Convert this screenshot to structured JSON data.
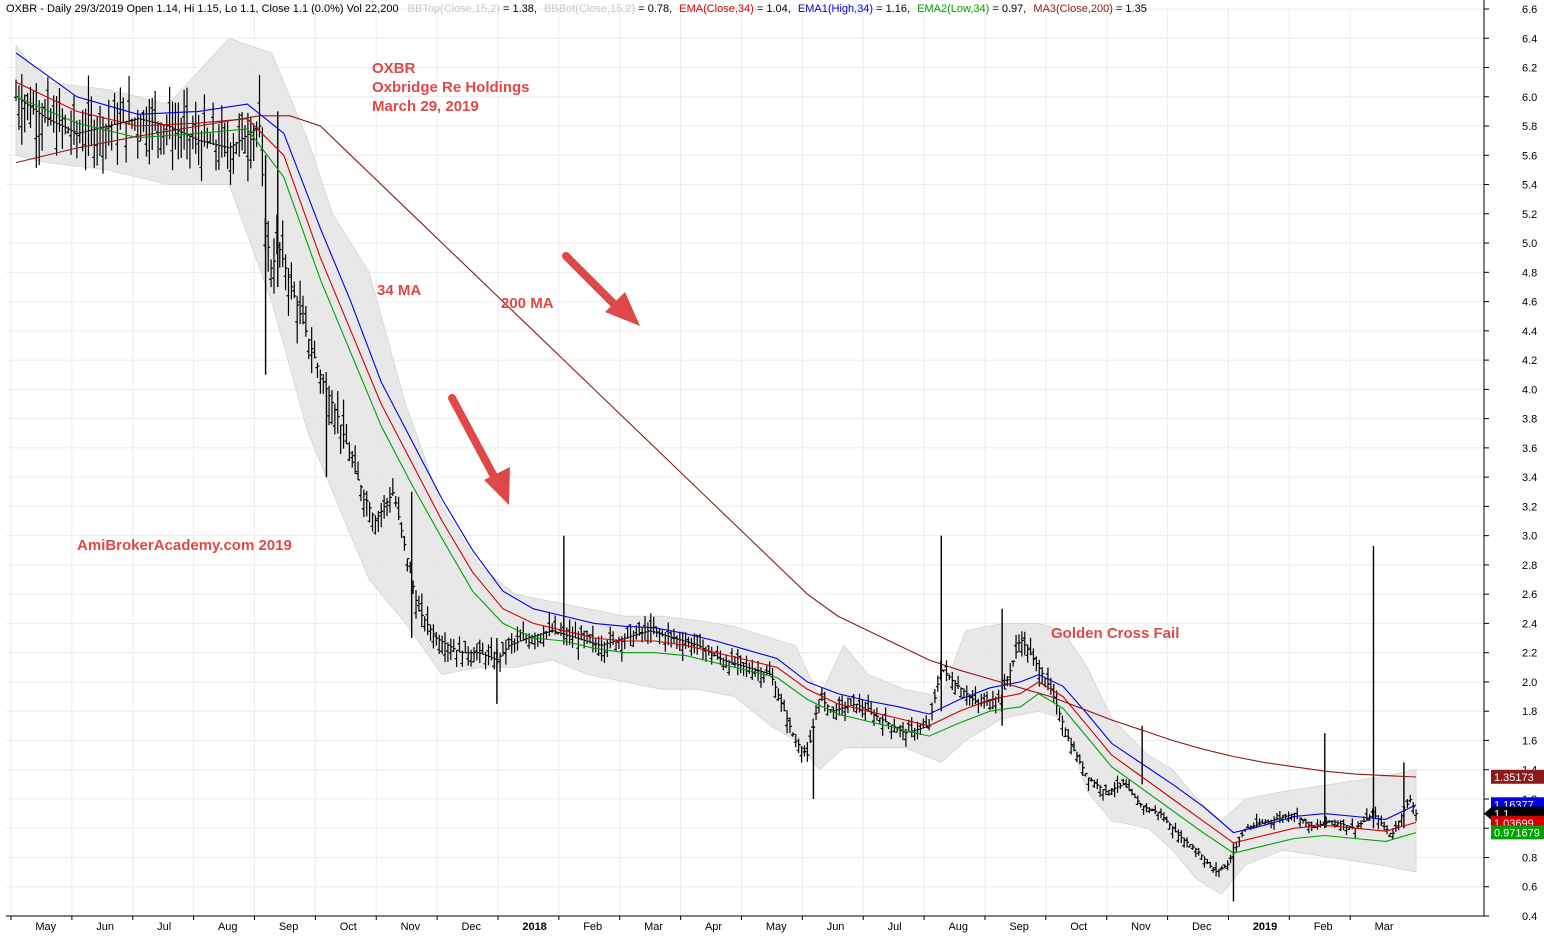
{
  "header": {
    "symbol_line": "OXBR - Daily 29/3/2019 Open 1.14, Hi 1.15, Lo 1.1, Close 1.1 (0.0%) Vol 22,200",
    "bbtop": "BBTop(Close,15,2)",
    "bbtop_val": " = 1.38,",
    "bbbot": "BBBot(Close,15,2)",
    "bbbot_val": " = 0.78,",
    "ema": "EMA(Close,34)",
    "ema_val": " = 1.04,",
    "ema1": "EMA1(High,34)",
    "ema1_val": " = 1.16,",
    "ema2": "EMA2(Low,34)",
    "ema2_val": " = 0.97,",
    "ma3": "MA3(Close,200)",
    "ma3_val": " = 1.35"
  },
  "annotations": {
    "title1": "OXBR",
    "title2": "Oxbridge Re Holdings",
    "title3": "March 29, 2019",
    "ma34": "34 MA",
    "ma200": "200 MA",
    "watermark": "AmiBrokerAcademy.com  2019",
    "golden": "Golden Cross Fail"
  },
  "colors": {
    "ema_close": "#d00000",
    "ema_high": "#0000e0",
    "ema_low": "#00a000",
    "ma200": "#8b1a1a",
    "bars": "#000000",
    "bands": "#e6e6e6",
    "annotation": "#e04848",
    "arrow": "#e04848"
  },
  "chart_data": {
    "type": "line",
    "title": "OXBR - Daily 29/3/2019",
    "y_axis": {
      "range": [
        0.4,
        6.6
      ],
      "ticks": [
        "0.4",
        "0.6",
        "0.8",
        "1.0",
        "1.2",
        "1.4",
        "1.6",
        "1.8",
        "2.0",
        "2.2",
        "2.4",
        "2.6",
        "2.8",
        "3.0",
        "3.2",
        "3.4",
        "3.6",
        "3.8",
        "4.0",
        "4.2",
        "4.4",
        "4.6",
        "4.8",
        "5.0",
        "5.2",
        "5.4",
        "5.6",
        "5.8",
        "6.0",
        "6.2",
        "6.4",
        "6.6"
      ]
    },
    "x_axis": {
      "labels": [
        "May",
        "Jun",
        "Jul",
        "Aug",
        "Sep",
        "Oct",
        "Nov",
        "Dec",
        "2018",
        "Feb",
        "Mar",
        "Apr",
        "May",
        "Jun",
        "Jul",
        "Aug",
        "Sep",
        "Oct",
        "Nov",
        "Dec",
        "2019",
        "Feb",
        "Mar"
      ],
      "positions": [
        0.4,
        1.4,
        2.4,
        3.4,
        4.4,
        5.4,
        6.4,
        7.4,
        8.4,
        9.4,
        10.4,
        11.4,
        12.4,
        13.4,
        14.4,
        15.4,
        16.4,
        17.4,
        18.4,
        19.4,
        20.4,
        21.4,
        22.4
      ],
      "bold": [
        8,
        20
      ],
      "month_starts": [
        0,
        1,
        2,
        3,
        4,
        5,
        6,
        7,
        8,
        9,
        10,
        11,
        12,
        13,
        14,
        15,
        16,
        17,
        18,
        19,
        20,
        21,
        22
      ],
      "end": 23
    },
    "series": [
      {
        "name": "Close",
        "color": "#000000",
        "x": [
          0,
          0.5,
          1,
          1.5,
          2,
          2.5,
          3,
          3.5,
          4,
          4.1,
          4.2,
          4.3,
          4.6,
          5,
          5.3,
          5.6,
          5.9,
          6.2,
          6.6,
          6.9,
          7.3,
          7.6,
          7.9,
          8.1,
          8.4,
          8.8,
          9.2,
          9.6,
          10,
          10.4,
          10.8,
          11.2,
          11.6,
          12,
          12.4,
          12.8,
          13.0,
          13.2,
          13.4,
          13.8,
          14.2,
          14.6,
          15,
          15.2,
          15.4,
          15.8,
          16.2,
          16.5,
          16.8,
          17.0,
          17.3,
          17.6,
          17.9,
          18.2,
          18.5,
          18.8,
          19.1,
          19.4,
          19.7,
          19.9,
          20.2,
          20.6,
          21.0,
          21.3,
          21.6,
          22.0,
          22.3,
          22.6,
          22.9,
          23.0
        ],
        "y": [
          6.0,
          5.85,
          5.75,
          5.8,
          5.85,
          5.8,
          5.7,
          5.65,
          5.8,
          5.1,
          4.8,
          5.0,
          4.6,
          4.1,
          3.8,
          3.4,
          3.1,
          3.3,
          2.5,
          2.3,
          2.2,
          2.2,
          2.15,
          2.25,
          2.3,
          2.35,
          2.3,
          2.25,
          2.3,
          2.35,
          2.3,
          2.25,
          2.15,
          2.1,
          2.05,
          1.6,
          1.5,
          1.9,
          1.8,
          1.85,
          1.75,
          1.65,
          1.7,
          2.1,
          2.0,
          1.85,
          1.9,
          2.3,
          2.1,
          1.95,
          1.6,
          1.35,
          1.25,
          1.3,
          1.15,
          1.1,
          0.95,
          0.85,
          0.7,
          0.75,
          1.0,
          1.05,
          1.1,
          1.0,
          1.05,
          1.0,
          1.1,
          0.95,
          1.2,
          1.1
        ]
      },
      {
        "name": "EMA(Close,34)",
        "color": "#d00000",
        "x": [
          0,
          1,
          2,
          3,
          3.8,
          4.4,
          5,
          5.5,
          6,
          6.5,
          7,
          7.5,
          8,
          8.5,
          9,
          9.5,
          10,
          10.5,
          11,
          11.5,
          12,
          12.5,
          13,
          13.5,
          14,
          14.5,
          15,
          15.5,
          16,
          16.5,
          16.8,
          17.2,
          17.6,
          18,
          18.5,
          19,
          19.5,
          20,
          20.5,
          21,
          21.5,
          22,
          22.5,
          23
        ],
        "y": [
          6.1,
          5.9,
          5.8,
          5.82,
          5.85,
          5.6,
          4.9,
          4.4,
          3.9,
          3.5,
          3.1,
          2.75,
          2.5,
          2.4,
          2.35,
          2.3,
          2.28,
          2.28,
          2.25,
          2.2,
          2.15,
          2.1,
          1.95,
          1.85,
          1.8,
          1.75,
          1.7,
          1.8,
          1.88,
          1.92,
          2.0,
          1.9,
          1.7,
          1.5,
          1.35,
          1.2,
          1.05,
          0.9,
          0.95,
          1.0,
          1.02,
          1.0,
          0.98,
          1.04
        ]
      },
      {
        "name": "EMA1(High,34)",
        "color": "#0000e0",
        "x": [
          0,
          1,
          2,
          3,
          3.8,
          4.4,
          5,
          5.5,
          6,
          6.5,
          7,
          7.5,
          8,
          8.5,
          9,
          9.5,
          10,
          10.5,
          11,
          11.5,
          12,
          12.5,
          13,
          13.5,
          14,
          14.5,
          15,
          15.5,
          16,
          16.5,
          16.8,
          17.2,
          17.6,
          18,
          18.5,
          19,
          19.5,
          20,
          20.5,
          21,
          21.5,
          22,
          22.5,
          23
        ],
        "y": [
          6.3,
          6.0,
          5.88,
          5.9,
          5.95,
          5.75,
          5.1,
          4.6,
          4.05,
          3.65,
          3.25,
          2.9,
          2.62,
          2.5,
          2.45,
          2.4,
          2.38,
          2.37,
          2.33,
          2.28,
          2.22,
          2.16,
          2.0,
          1.92,
          1.87,
          1.83,
          1.78,
          1.88,
          1.96,
          2.0,
          2.05,
          1.97,
          1.78,
          1.58,
          1.44,
          1.3,
          1.15,
          0.97,
          1.02,
          1.08,
          1.1,
          1.08,
          1.06,
          1.16
        ]
      },
      {
        "name": "EMA2(Low,34)",
        "color": "#00a000",
        "x": [
          0,
          1,
          2,
          3,
          3.8,
          4.4,
          5,
          5.5,
          6,
          6.5,
          7,
          7.5,
          8,
          8.5,
          9,
          9.5,
          10,
          10.5,
          11,
          11.5,
          12,
          12.5,
          13,
          13.5,
          14,
          14.5,
          15,
          15.5,
          16,
          16.5,
          16.8,
          17.2,
          17.6,
          18,
          18.5,
          19,
          19.5,
          20,
          20.5,
          21,
          21.5,
          22,
          22.5,
          23
        ],
        "y": [
          6.0,
          5.82,
          5.72,
          5.75,
          5.78,
          5.45,
          4.75,
          4.25,
          3.75,
          3.35,
          2.98,
          2.62,
          2.4,
          2.3,
          2.28,
          2.23,
          2.2,
          2.2,
          2.18,
          2.13,
          2.08,
          2.03,
          1.88,
          1.78,
          1.73,
          1.68,
          1.63,
          1.72,
          1.8,
          1.83,
          1.92,
          1.82,
          1.62,
          1.42,
          1.27,
          1.12,
          0.97,
          0.83,
          0.88,
          0.93,
          0.95,
          0.93,
          0.91,
          0.97
        ]
      },
      {
        "name": "MA3(Close,200)",
        "color": "#8b1a1a",
        "x": [
          0,
          1,
          2,
          3,
          4,
          4.5,
          5,
          5.5,
          6,
          6.5,
          7,
          7.5,
          8,
          8.5,
          9,
          9.5,
          10,
          10.5,
          11,
          11.5,
          12,
          12.5,
          13,
          13.5,
          14,
          14.5,
          15,
          15.5,
          16,
          16.5,
          17,
          17.5,
          18,
          18.5,
          19,
          19.5,
          20,
          20.5,
          21,
          21.5,
          22,
          22.5,
          23
        ],
        "y": [
          5.55,
          5.65,
          5.73,
          5.8,
          5.87,
          5.87,
          5.8,
          5.6,
          5.4,
          5.2,
          5.0,
          4.8,
          4.6,
          4.4,
          4.2,
          4.0,
          3.8,
          3.6,
          3.4,
          3.2,
          3.0,
          2.8,
          2.6,
          2.45,
          2.35,
          2.25,
          2.15,
          2.08,
          2.02,
          1.96,
          1.9,
          1.82,
          1.74,
          1.67,
          1.6,
          1.54,
          1.49,
          1.45,
          1.42,
          1.39,
          1.37,
          1.36,
          1.35
        ]
      }
    ],
    "bands": {
      "upper": [
        6.35,
        6.1,
        6.05,
        5.95,
        6.4,
        6.3,
        5.7,
        5.2,
        4.8,
        3.9,
        3.2,
        2.8,
        2.6,
        2.55,
        2.5,
        2.45,
        2.45,
        2.42,
        2.38,
        2.3,
        2.25,
        1.9,
        2.25,
        2.05,
        1.95,
        1.9,
        2.35,
        2.4,
        2.4,
        2.35,
        2.1,
        1.75,
        1.5,
        1.4,
        1.2,
        1.05,
        1.2,
        1.25,
        1.3,
        1.35,
        1.4
      ],
      "lower": [
        5.6,
        5.55,
        5.5,
        5.4,
        5.4,
        4.6,
        3.7,
        3.3,
        2.7,
        2.4,
        2.05,
        2.1,
        2.1,
        2.15,
        2.05,
        2.0,
        1.95,
        1.95,
        1.9,
        1.7,
        1.6,
        1.4,
        1.55,
        1.55,
        1.55,
        1.45,
        1.6,
        1.75,
        1.8,
        1.75,
        1.25,
        1.05,
        1.0,
        0.85,
        0.65,
        0.55,
        0.75,
        0.85,
        0.8,
        0.75,
        0.7
      ],
      "x": [
        0,
        0.5,
        1.5,
        2.5,
        3.5,
        4.2,
        4.8,
        5.2,
        5.8,
        6.4,
        7.0,
        7.6,
        8.2,
        8.8,
        9.4,
        10.0,
        10.6,
        11.2,
        11.8,
        12.4,
        12.8,
        13.2,
        13.6,
        14.0,
        14.6,
        15.2,
        15.6,
        16.2,
        16.8,
        17.2,
        17.6,
        18.0,
        18.6,
        19.0,
        19.4,
        19.8,
        20.2,
        20.8,
        21.6,
        22.4,
        23.0
      ]
    },
    "spikes": [
      {
        "x": 4.1,
        "low": 4.1,
        "high": 5.6
      },
      {
        "x": 4.3,
        "low": 4.7,
        "high": 5.9
      },
      {
        "x": 5.1,
        "low": 3.4,
        "high": 4.0
      },
      {
        "x": 6.5,
        "low": 2.3,
        "high": 3.3
      },
      {
        "x": 7.9,
        "low": 1.85,
        "high": 2.3
      },
      {
        "x": 9.0,
        "low": 2.3,
        "high": 3.0
      },
      {
        "x": 13.1,
        "low": 1.2,
        "high": 1.7
      },
      {
        "x": 15.2,
        "low": 1.8,
        "high": 3.0
      },
      {
        "x": 16.2,
        "low": 1.7,
        "high": 2.5
      },
      {
        "x": 18.5,
        "low": 1.3,
        "high": 1.7
      },
      {
        "x": 20.0,
        "low": 0.5,
        "high": 0.9
      },
      {
        "x": 21.5,
        "low": 1.0,
        "high": 1.65
      },
      {
        "x": 22.3,
        "low": 1.0,
        "high": 2.93
      },
      {
        "x": 22.8,
        "low": 1.0,
        "high": 1.45
      }
    ],
    "value_labels": [
      {
        "text": "1.35173",
        "value": 1.35173,
        "color": "#8b1a1a"
      },
      {
        "text": "1.16377",
        "value": 1.16377,
        "color": "#0000e0"
      },
      {
        "text": "1.1",
        "value": 1.1,
        "color": "#000000"
      },
      {
        "text": "1.03699",
        "value": 1.03699,
        "color": "#d00000"
      },
      {
        "text": "0.971679",
        "value": 0.971679,
        "color": "#00a000"
      }
    ]
  }
}
